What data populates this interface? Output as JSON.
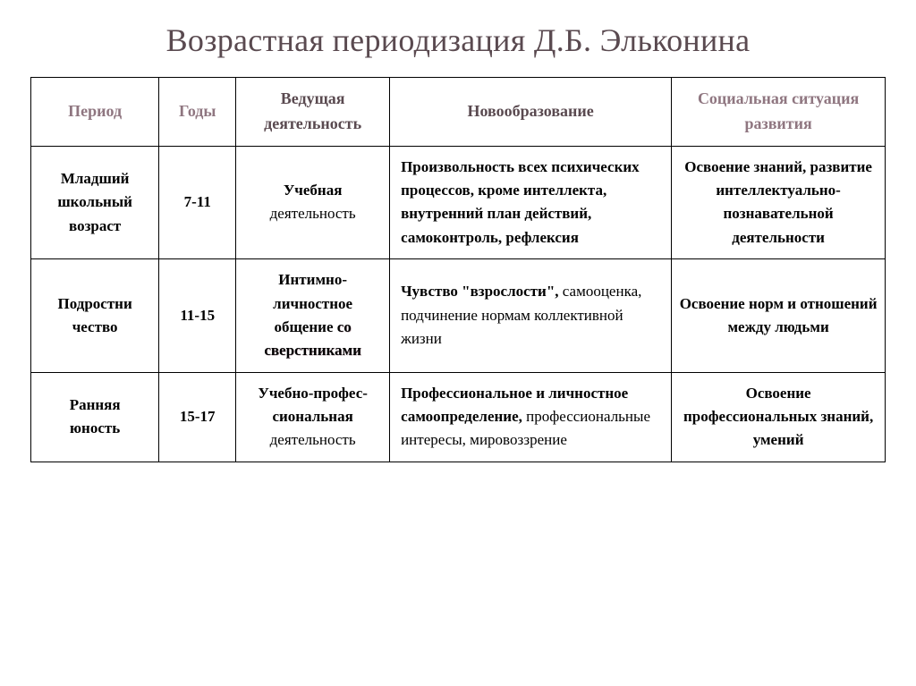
{
  "title": "Возрастная периодизация Д.Б. Эльконина",
  "headers": {
    "period": "Период",
    "years": "Годы",
    "leading": "Ведущая деятельность",
    "neoplasm": "Новообразование",
    "social": "Социальная ситуация развития"
  },
  "rows": [
    {
      "period_pre": "Младший школьный",
      "period_suf": "возраст",
      "years": "7-11",
      "leading_pre": "Учебная",
      "leading_suf": "деятельность",
      "neoplasm": "Произвольность всех психических процессов, кроме интеллекта, внутренний план действий, самоконтроль, рефлексия",
      "social": "Освоение знаний, развитие интеллектуально-познавательной деятельности"
    },
    {
      "period_pre": "Подростни",
      "period_suf": "чество",
      "years": "11-15",
      "leading_pre": "Интимно-личностное общение",
      "leading_peers": "со сверстниками",
      "neoplasm_pre": "Чувство \"взрослости\",",
      "neoplasm_suf": "самооценка, подчинение нормам коллективной жизни",
      "social": "Освоение норм и отношений между людьми"
    },
    {
      "period_pre": "Ранняя",
      "period_suf": "юность",
      "years": "15-17",
      "leading_pre": "Учебно-профес-сиональная",
      "leading_suf": "деятельность",
      "neoplasm_pre": "Профессиональное и личностное самоопределение,",
      "neoplasm_suf": "профессиональные интересы, мировоззрение",
      "social": "Освоение профессиональных знаний, умений"
    }
  ],
  "style": {
    "title_color": "#5a4a50",
    "header_color": "#5a4a50",
    "header_muted_color": "#8f7680",
    "border_color": "#000000",
    "background": "#ffffff",
    "title_fontsize": 36,
    "header_fontsize": 18,
    "cell_fontsize": 17,
    "font_family": "Times New Roman",
    "col_widths_pct": [
      15,
      9,
      18,
      33,
      25
    ]
  }
}
